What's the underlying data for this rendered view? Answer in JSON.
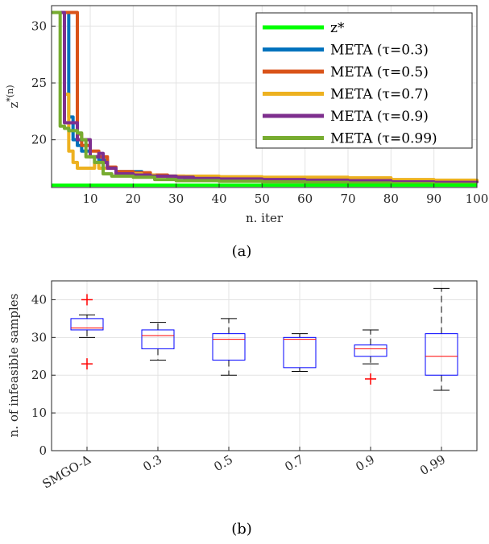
{
  "chart_data": [
    {
      "type": "line",
      "caption": "(a)",
      "xlabel": "n. iter",
      "ylabel": "z*(n)",
      "xlim": [
        1,
        100
      ],
      "ylim": [
        15.8,
        31.8
      ],
      "xticks": [
        10,
        20,
        30,
        40,
        50,
        60,
        70,
        80,
        90,
        100
      ],
      "yticks": [
        20,
        25,
        30
      ],
      "grid": true,
      "legend_position": "top-right",
      "series": [
        {
          "name": "z*",
          "color": "#00ff00",
          "x": [
            1,
            100
          ],
          "y": [
            16.0,
            16.0
          ]
        },
        {
          "name": "META (τ=0.3)",
          "color": "#0072bd",
          "x": [
            1,
            4,
            5,
            6,
            7,
            8,
            10,
            12,
            14,
            16,
            20,
            22,
            24,
            28,
            32,
            40,
            50,
            60,
            70,
            80,
            90,
            100
          ],
          "y": [
            31.2,
            31.2,
            22.0,
            20.0,
            19.5,
            19.0,
            18.5,
            18.2,
            17.5,
            17.2,
            17.2,
            17.0,
            16.8,
            16.7,
            16.6,
            16.55,
            16.5,
            16.45,
            16.4,
            16.35,
            16.3,
            16.25
          ]
        },
        {
          "name": "META (τ=0.5)",
          "color": "#d95319",
          "x": [
            1,
            6,
            7,
            8,
            10,
            12,
            14,
            16,
            20,
            24,
            28,
            32,
            40,
            50,
            60,
            70,
            80,
            90,
            100
          ],
          "y": [
            31.2,
            31.2,
            20.5,
            19.5,
            19.0,
            18.5,
            17.6,
            17.2,
            17.1,
            16.9,
            16.8,
            16.7,
            16.6,
            16.55,
            16.5,
            16.45,
            16.4,
            16.35,
            16.3
          ]
        },
        {
          "name": "META (τ=0.7)",
          "color": "#edb120",
          "x": [
            1,
            3,
            4,
            5,
            6,
            7,
            10,
            11,
            12,
            15,
            16,
            20,
            22,
            25,
            30,
            40,
            50,
            60,
            70,
            80,
            90,
            100
          ],
          "y": [
            31.2,
            31.2,
            24.0,
            19.0,
            18.0,
            17.5,
            17.5,
            18.0,
            17.5,
            17.5,
            17.0,
            17.0,
            16.9,
            16.8,
            16.8,
            16.75,
            16.7,
            16.7,
            16.65,
            16.5,
            16.45,
            16.4
          ]
        },
        {
          "name": "META (τ=0.9)",
          "color": "#7e2f8e",
          "x": [
            1,
            3,
            4,
            6,
            7,
            10,
            12,
            13,
            14,
            16,
            20,
            24,
            30,
            34,
            40,
            50,
            60,
            70,
            80,
            90,
            100
          ],
          "y": [
            31.2,
            31.2,
            21.5,
            21.5,
            20.0,
            18.5,
            18.8,
            18.0,
            17.5,
            17.0,
            16.9,
            16.8,
            16.7,
            16.6,
            16.55,
            16.5,
            16.45,
            16.4,
            16.3,
            16.25,
            16.2
          ]
        },
        {
          "name": "META (τ=0.99)",
          "color": "#77ac30",
          "x": [
            1,
            2,
            3,
            4,
            5,
            7,
            8,
            9,
            11,
            13,
            15,
            20,
            25,
            30,
            40,
            50,
            60,
            70,
            80,
            90,
            100
          ],
          "y": [
            31.2,
            31.2,
            21.2,
            21.0,
            20.8,
            20.6,
            20.0,
            18.5,
            18.0,
            17.0,
            16.8,
            16.7,
            16.5,
            16.4,
            16.35,
            16.3,
            16.25,
            16.2,
            16.15,
            16.1,
            16.1
          ]
        }
      ]
    },
    {
      "type": "box",
      "caption": "(b)",
      "ylabel": "n. of infeasible samples",
      "ylim": [
        0,
        45
      ],
      "yticks": [
        0,
        10,
        20,
        30,
        40
      ],
      "grid": true,
      "categories": [
        "SMGO-Δ",
        "0.3",
        "0.5",
        "0.7",
        "0.9",
        "0.99"
      ],
      "boxes": [
        {
          "whisker_low": 30,
          "q1": 32,
          "median": 32.5,
          "q3": 35,
          "whisker_high": 36,
          "outliers": [
            23,
            40
          ]
        },
        {
          "whisker_low": 24,
          "q1": 27,
          "median": 30.5,
          "q3": 32,
          "whisker_high": 34,
          "outliers": []
        },
        {
          "whisker_low": 20,
          "q1": 24,
          "median": 29.5,
          "q3": 31,
          "whisker_high": 35,
          "outliers": []
        },
        {
          "whisker_low": 21,
          "q1": 22,
          "median": 29.5,
          "q3": 30,
          "whisker_high": 31,
          "outliers": []
        },
        {
          "whisker_low": 23,
          "q1": 25,
          "median": 27,
          "q3": 28,
          "whisker_high": 32,
          "outliers": [
            19
          ]
        },
        {
          "whisker_low": 16,
          "q1": 20,
          "median": 25,
          "q3": 31,
          "whisker_high": 43,
          "outliers": []
        }
      ],
      "box_color": "#0000ff",
      "median_color": "#ff0000",
      "outlier_color": "#ff0000"
    }
  ]
}
